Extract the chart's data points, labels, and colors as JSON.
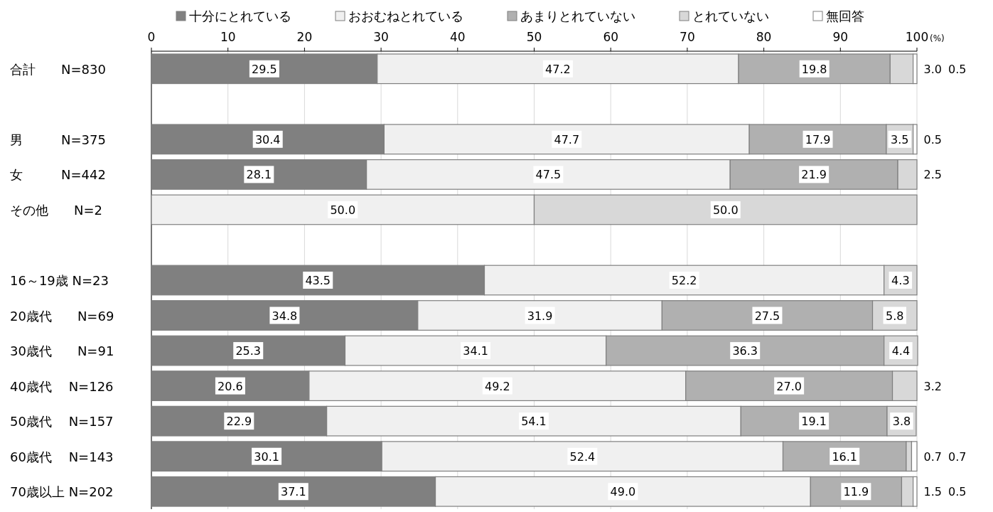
{
  "chart_data": {
    "type": "bar",
    "orientation": "horizontal",
    "stacked": true,
    "grid": "x",
    "legend": "top",
    "xlabel": "(%)",
    "xlim": [
      0,
      100
    ],
    "xticks": [
      0,
      10,
      20,
      30,
      40,
      50,
      60,
      70,
      80,
      90,
      100
    ],
    "categories": [
      "合計　　N=830",
      null,
      "男　　　N=375",
      "女　　　N=442",
      "その他　　N=2",
      null,
      "16～19歳 N=23",
      "20歳代　　N=69",
      "30歳代　　N=91",
      "40歳代　 N=126",
      "50歳代　 N=157",
      "60歳代　 N=143",
      "70歳以上 N=202"
    ],
    "series": [
      {
        "name": "十分にとれている",
        "color": "#808080",
        "values": [
          29.5,
          null,
          30.4,
          28.1,
          null,
          null,
          43.5,
          34.8,
          25.3,
          20.6,
          22.9,
          30.1,
          37.1
        ],
        "value_labels": [
          "29.5",
          null,
          "30.4",
          "28.1",
          null,
          null,
          "43.5",
          "34.8",
          "25.3",
          "20.6",
          "22.9",
          "30.1",
          "37.1"
        ]
      },
      {
        "name": "おおむねとれている",
        "color": "#f0f0f0",
        "values": [
          47.2,
          null,
          47.7,
          47.5,
          50.0,
          null,
          52.2,
          31.9,
          34.1,
          49.2,
          54.1,
          52.4,
          49.0
        ],
        "value_labels": [
          "47.2",
          null,
          "47.7",
          "47.5",
          "50.0",
          null,
          "52.2",
          "31.9",
          "34.1",
          "49.2",
          "54.1",
          "52.4",
          "49.0"
        ]
      },
      {
        "name": "あまりとれていない",
        "color": "#b0b0b0",
        "values": [
          19.8,
          null,
          17.9,
          21.9,
          null,
          null,
          null,
          27.5,
          36.3,
          27.0,
          19.1,
          16.1,
          11.9
        ],
        "value_labels": [
          "19.8",
          null,
          "17.9",
          "21.9",
          null,
          null,
          null,
          "27.5",
          "36.3",
          "27.0",
          "19.1",
          "16.1",
          "11.9"
        ]
      },
      {
        "name": "とれていない",
        "color": "#d8d8d8",
        "values": [
          3.0,
          null,
          3.5,
          2.5,
          50.0,
          null,
          4.3,
          5.8,
          4.4,
          3.2,
          3.8,
          0.7,
          1.5
        ],
        "value_labels": [
          "3.0",
          null,
          "3.5",
          "2.5",
          "50.0",
          null,
          "4.3",
          "5.8",
          "4.4",
          "3.2",
          "3.8",
          "0.7",
          "1.5"
        ]
      },
      {
        "name": "無回答",
        "color": "#ffffff",
        "values": [
          0.5,
          null,
          0.5,
          null,
          null,
          null,
          null,
          null,
          null,
          null,
          null,
          0.7,
          0.5
        ],
        "value_labels": [
          "0.5",
          null,
          "0.5",
          null,
          null,
          null,
          null,
          null,
          null,
          null,
          null,
          "0.7",
          "0.5"
        ]
      }
    ]
  }
}
